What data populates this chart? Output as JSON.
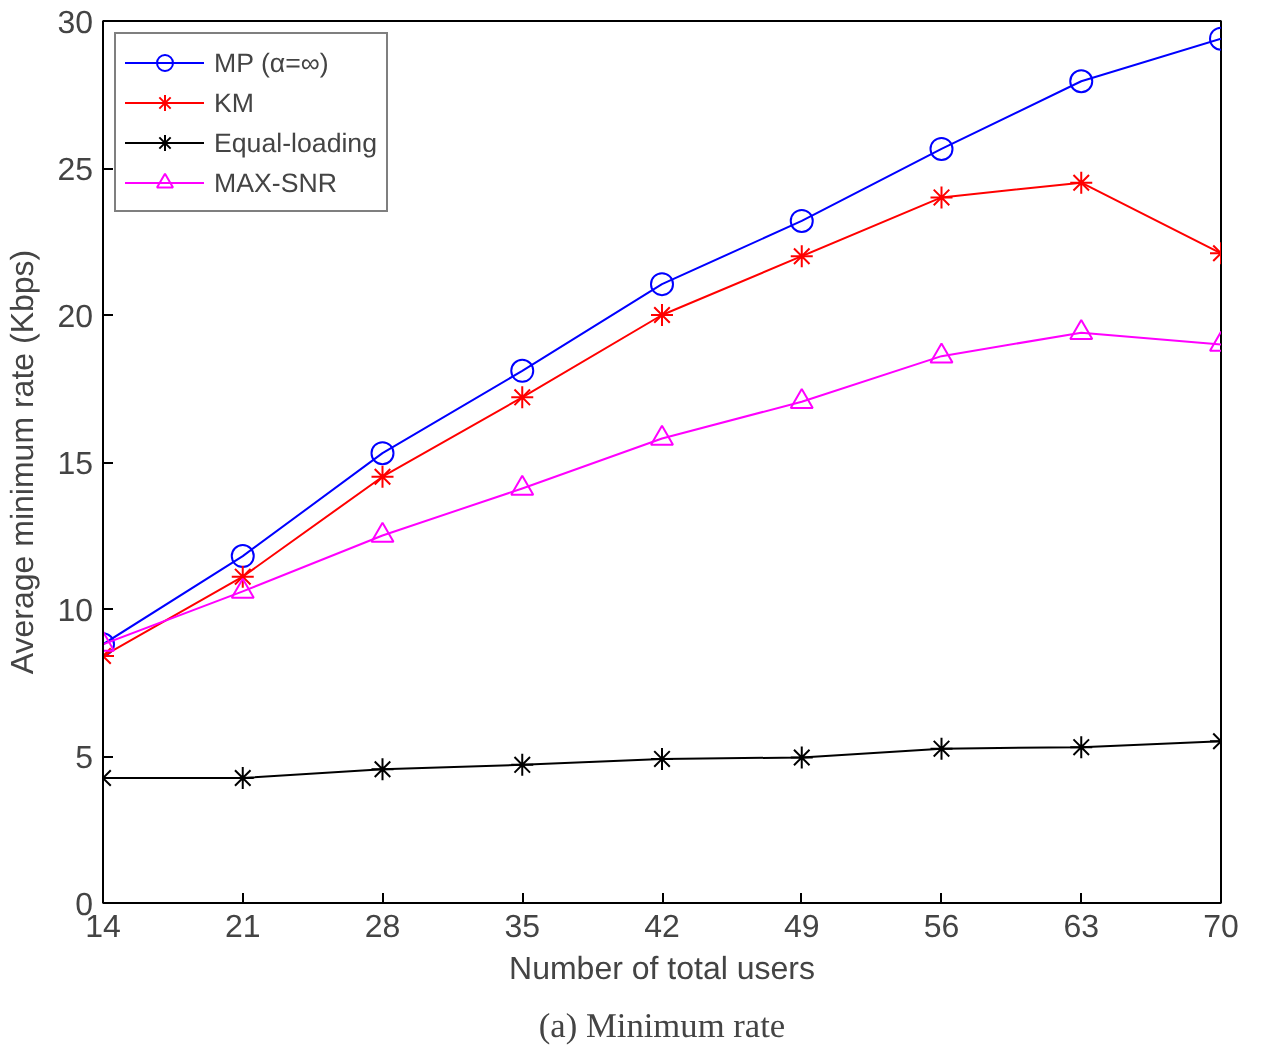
{
  "chart_data": {
    "type": "line",
    "xlabel": "Number of total users",
    "ylabel": "Average minimum rate (Kbps)",
    "x": [
      14,
      21,
      28,
      35,
      42,
      49,
      56,
      63,
      70
    ],
    "xlim": [
      14,
      70
    ],
    "xticks": [
      14,
      21,
      28,
      35,
      42,
      49,
      56,
      63,
      70
    ],
    "ylim": [
      0,
      30
    ],
    "yticks": [
      0,
      5,
      10,
      15,
      20,
      25,
      30
    ],
    "grid": false,
    "legend": "top left",
    "line_style": "solid",
    "series": [
      {
        "name": "MP (α=∞)",
        "color": "#0000ff",
        "marker": "circle",
        "values": [
          8.8,
          11.8,
          15.3,
          18.1,
          21.05,
          23.2,
          25.65,
          27.95,
          29.4
        ]
      },
      {
        "name": "KM",
        "color": "#ff0000",
        "marker": "cross",
        "values": [
          8.4,
          11.1,
          14.5,
          17.2,
          20.0,
          22.0,
          24.0,
          24.5,
          22.1
        ]
      },
      {
        "name": "Equal-loading",
        "color": "#000000",
        "marker": "cross",
        "values": [
          4.25,
          4.25,
          4.55,
          4.7,
          4.9,
          4.95,
          5.25,
          5.3,
          5.5
        ]
      },
      {
        "name": "MAX-SNR",
        "color": "#ff00ff",
        "marker": "triangle",
        "values": [
          8.8,
          10.6,
          12.5,
          14.1,
          15.8,
          17.05,
          18.6,
          19.4,
          19.0
        ]
      }
    ],
    "annotations": [
      "(a) Minimum rate"
    ]
  }
}
